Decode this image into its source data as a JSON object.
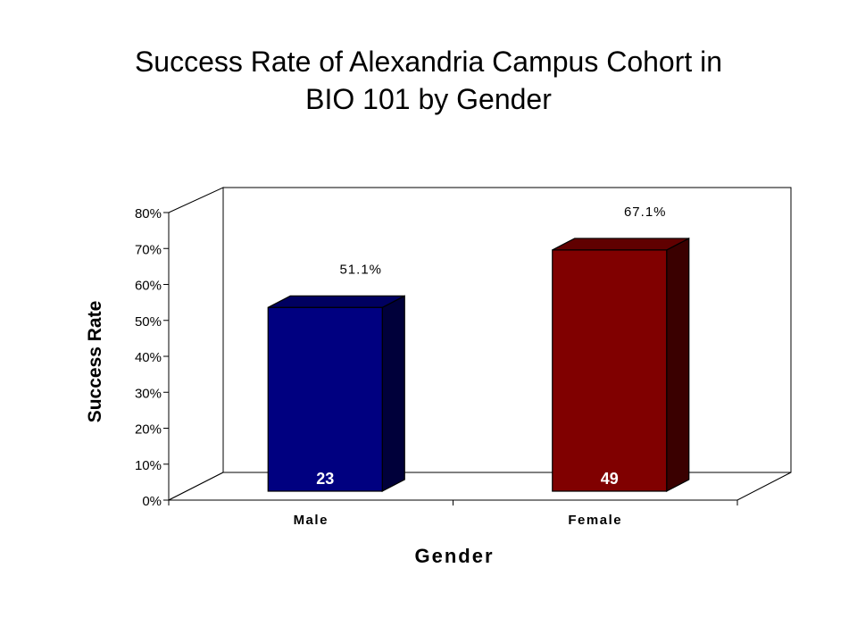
{
  "chart_data": {
    "type": "bar",
    "title_lines": [
      "Success Rate of Alexandria Campus Cohort in",
      "BIO 101 by Gender"
    ],
    "categories": [
      "Male",
      "Female"
    ],
    "values": [
      51.1,
      67.1
    ],
    "value_labels": [
      "51.1%",
      "67.1%"
    ],
    "counts": [
      "23",
      "49"
    ],
    "bar_colors": [
      "#000080",
      "#800000"
    ],
    "xlabel": "Gender",
    "ylabel": "Success Rate",
    "ylim": [
      0,
      80
    ],
    "yticks": [
      0,
      10,
      20,
      30,
      40,
      50,
      60,
      70,
      80
    ],
    "ytick_labels": [
      "0%",
      "10%",
      "20%",
      "30%",
      "40%",
      "50%",
      "60%",
      "70%",
      "80%"
    ],
    "style": "3d-column",
    "grid": false
  }
}
